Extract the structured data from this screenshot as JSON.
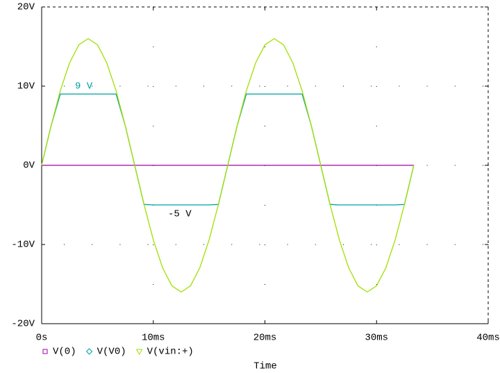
{
  "chart_data": {
    "type": "line",
    "x_label": "Time",
    "x": [
      0,
      0.833,
      1.667,
      2.5,
      3.333,
      4.167,
      5,
      5.833,
      6.667,
      7.5,
      8.333,
      9.167,
      10,
      10.833,
      11.667,
      12.5,
      13.333,
      14.167,
      15,
      15.833,
      16.667,
      17.5,
      18.333,
      19.167,
      20,
      20.833,
      21.667,
      22.5,
      23.333,
      24.167,
      25,
      25.833,
      26.667,
      27.5,
      28.333,
      29.167,
      30,
      30.833,
      31.667,
      32.5,
      33.333
    ],
    "series": [
      {
        "name": "V(0)",
        "color": "#a000a0",
        "marker": "square",
        "values": [
          0,
          0,
          0,
          0,
          0,
          0,
          0,
          0,
          0,
          0,
          0,
          0,
          0,
          0,
          0,
          0,
          0,
          0,
          0,
          0,
          0,
          0,
          0,
          0,
          0,
          0,
          0,
          0,
          0,
          0,
          0,
          0,
          0,
          0,
          0,
          0,
          0,
          0,
          0,
          0,
          0
        ]
      },
      {
        "name": "V(V0)",
        "color": "#00a0a0",
        "marker": "diamond",
        "values": [
          0,
          4.94,
          9,
          9,
          9,
          9,
          9,
          9,
          9,
          4.94,
          0,
          -4.94,
          -5,
          -5,
          -5,
          -5,
          -5,
          -5,
          -5,
          -4.94,
          0,
          4.94,
          9,
          9,
          9,
          9,
          9,
          9,
          9,
          4.94,
          0,
          -4.94,
          -5,
          -5,
          -5,
          -5,
          -5,
          -5,
          -5,
          -4.94,
          0
        ]
      },
      {
        "name": "V(vin:+)",
        "color": "#a0e000",
        "marker": "triangle",
        "values": [
          0,
          4.94,
          9.41,
          12.94,
          15.22,
          16,
          15.22,
          12.94,
          9.41,
          4.94,
          0,
          -4.94,
          -9.41,
          -12.94,
          -15.22,
          -16,
          -15.22,
          -12.94,
          -9.41,
          -4.94,
          0,
          4.94,
          9.41,
          12.94,
          15.22,
          16,
          15.22,
          12.94,
          9.41,
          4.94,
          0,
          -4.94,
          -9.41,
          -12.94,
          -15.22,
          -16,
          -15.22,
          -12.94,
          -9.41,
          -4.94,
          0
        ]
      }
    ],
    "annotations": [
      "9 V",
      "-5 V"
    ],
    "xlim": [
      0,
      40
    ],
    "xticks": [
      {
        "value": 0,
        "label": "0s"
      },
      {
        "value": 10,
        "label": "10ms"
      },
      {
        "value": 20,
        "label": "20ms"
      },
      {
        "value": 30,
        "label": "30ms"
      },
      {
        "value": 40,
        "label": "40ms"
      }
    ],
    "ylim": [
      -20,
      20
    ],
    "yticks": [
      {
        "value": -20,
        "label": "-20V"
      },
      {
        "value": -10,
        "label": "-10V"
      },
      {
        "value": 0,
        "label": "0V"
      },
      {
        "value": 10,
        "label": "10V"
      },
      {
        "value": 20,
        "label": "20V"
      }
    ],
    "grid": true
  }
}
